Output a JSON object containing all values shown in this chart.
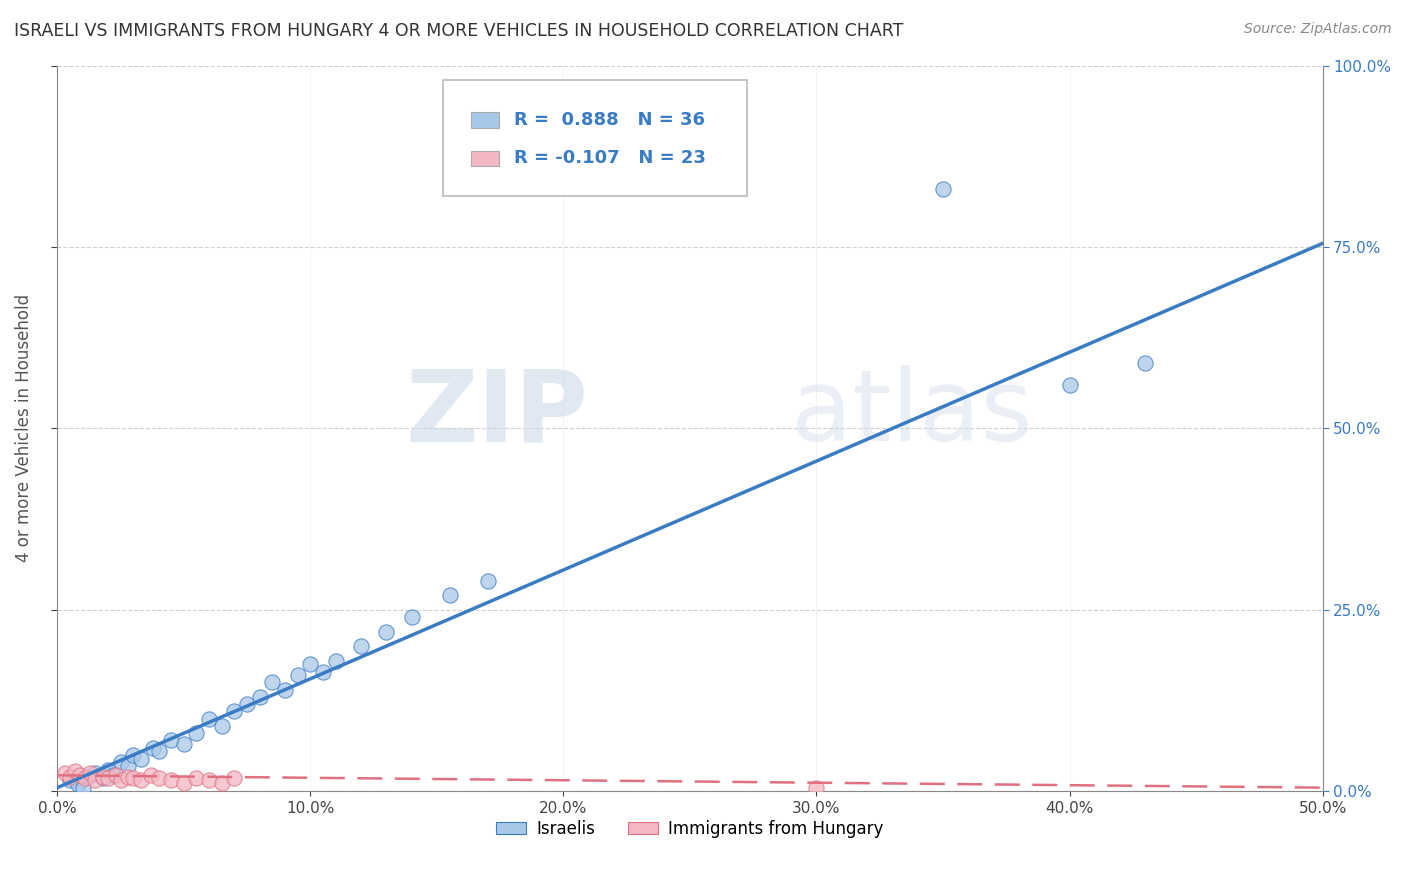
{
  "title": "ISRAELI VS IMMIGRANTS FROM HUNGARY 4 OR MORE VEHICLES IN HOUSEHOLD CORRELATION CHART",
  "source": "Source: ZipAtlas.com",
  "ylabel": "4 or more Vehicles in Household",
  "legend_labels": [
    "Israelis",
    "Immigrants from Hungary"
  ],
  "r_israelis": 0.888,
  "n_israelis": 36,
  "r_hungary": -0.107,
  "n_hungary": 23,
  "xlim": [
    0.0,
    0.5
  ],
  "ylim": [
    0.0,
    1.0
  ],
  "xtick_vals": [
    0.0,
    0.1,
    0.2,
    0.3,
    0.4,
    0.5
  ],
  "ytick_vals": [
    0.0,
    0.25,
    0.5,
    0.75,
    1.0
  ],
  "color_israelis": "#a8c8e8",
  "color_hungary": "#f4b8c4",
  "line_color_israelis": "#3a7cc4",
  "line_color_hungary": "#e07080",
  "watermark_zip": "ZIP",
  "watermark_atlas": "atlas",
  "israelis_x": [
    0.005,
    0.008,
    0.01,
    0.012,
    0.015,
    0.018,
    0.02,
    0.022,
    0.025,
    0.028,
    0.03,
    0.033,
    0.038,
    0.04,
    0.045,
    0.05,
    0.055,
    0.06,
    0.065,
    0.07,
    0.075,
    0.08,
    0.085,
    0.09,
    0.095,
    0.1,
    0.105,
    0.11,
    0.12,
    0.13,
    0.14,
    0.155,
    0.17,
    0.35,
    0.4,
    0.43
  ],
  "israelis_y": [
    0.015,
    0.01,
    0.005,
    0.02,
    0.025,
    0.018,
    0.03,
    0.022,
    0.04,
    0.035,
    0.05,
    0.045,
    0.06,
    0.055,
    0.07,
    0.065,
    0.08,
    0.1,
    0.09,
    0.11,
    0.12,
    0.13,
    0.15,
    0.14,
    0.16,
    0.175,
    0.165,
    0.18,
    0.2,
    0.22,
    0.24,
    0.27,
    0.29,
    0.83,
    0.56,
    0.59
  ],
  "hungary_x": [
    0.003,
    0.005,
    0.007,
    0.009,
    0.011,
    0.013,
    0.015,
    0.018,
    0.02,
    0.023,
    0.025,
    0.028,
    0.03,
    0.033,
    0.037,
    0.04,
    0.045,
    0.05,
    0.055,
    0.06,
    0.065,
    0.07,
    0.3
  ],
  "hungary_y": [
    0.025,
    0.02,
    0.028,
    0.022,
    0.018,
    0.025,
    0.015,
    0.02,
    0.018,
    0.022,
    0.016,
    0.02,
    0.018,
    0.015,
    0.022,
    0.018,
    0.015,
    0.012,
    0.018,
    0.015,
    0.012,
    0.018,
    0.004
  ],
  "isr_line_x": [
    0.0,
    0.5
  ],
  "isr_line_y": [
    0.005,
    0.755
  ],
  "hun_line_x": [
    0.0,
    0.5
  ],
  "hun_line_y": [
    0.022,
    0.005
  ]
}
